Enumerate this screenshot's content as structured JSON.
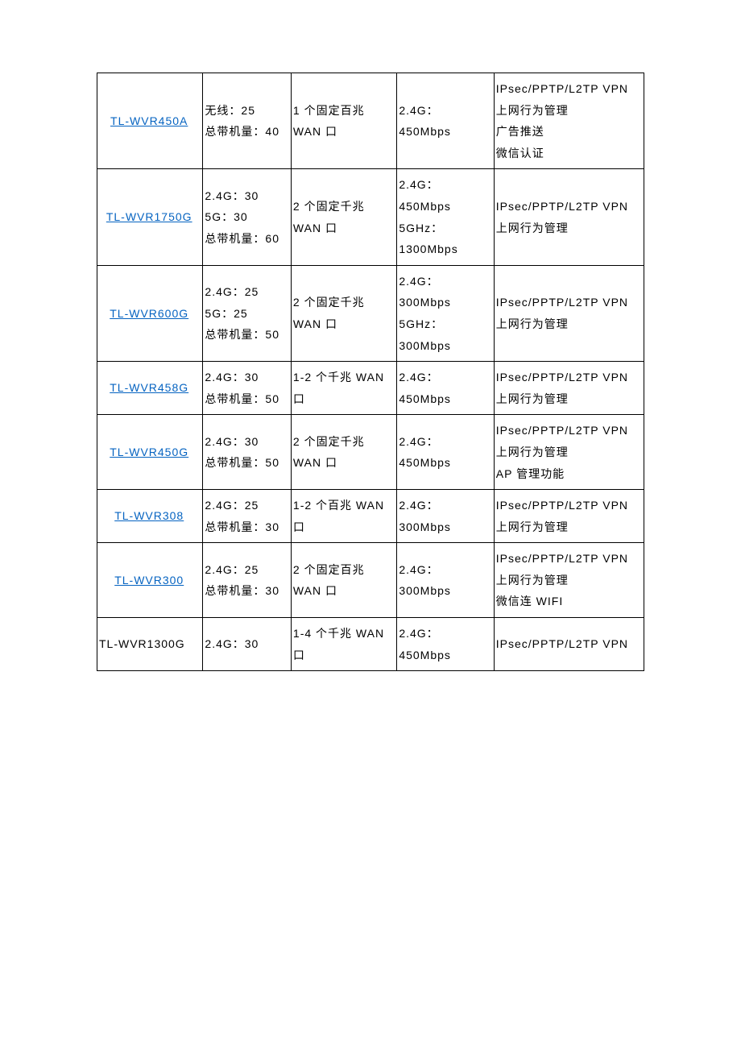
{
  "table": {
    "border_color": "#000000",
    "link_color": "#0563c1",
    "background_color": "#ffffff",
    "font_size_pt": 10.5,
    "rows": [
      {
        "model": "TL-WVR450A",
        "model_is_link": true,
        "capacity": [
          "无线：25",
          "总带机量：40"
        ],
        "wan": [
          "1 个固定百兆 WAN 口"
        ],
        "speed": [
          "2.4G：450Mbps"
        ],
        "features": [
          "IPsec/PPTP/L2TP VPN",
          "上网行为管理",
          "广告推送",
          "微信认证"
        ]
      },
      {
        "model": "TL-WVR1750G",
        "model_is_link": true,
        "capacity": [
          "2.4G：30",
          "5G：30",
          "总带机量：60"
        ],
        "wan": [
          "2 个固定千兆 WAN 口"
        ],
        "speed": [
          "2.4G：450Mbps",
          "5GHz：1300Mbps"
        ],
        "features": [
          "IPsec/PPTP/L2TP VPN",
          "上网行为管理"
        ]
      },
      {
        "model": "TL-WVR600G",
        "model_is_link": true,
        "capacity": [
          "2.4G：25",
          "5G：25",
          "总带机量：50"
        ],
        "wan": [
          "2 个固定千兆 WAN 口"
        ],
        "speed": [
          "2.4G：300Mbps",
          "5GHz：300Mbps"
        ],
        "features": [
          "IPsec/PPTP/L2TP VPN",
          "上网行为管理"
        ]
      },
      {
        "model": "TL-WVR458G",
        "model_is_link": true,
        "capacity": [
          "2.4G：30",
          "总带机量：50"
        ],
        "wan": [
          "1-2 个千兆 WAN 口"
        ],
        "speed": [
          "2.4G：450Mbps"
        ],
        "features": [
          "IPsec/PPTP/L2TP VPN",
          "上网行为管理"
        ]
      },
      {
        "model": "TL-WVR450G",
        "model_is_link": true,
        "capacity": [
          "2.4G：30",
          "总带机量：50"
        ],
        "wan": [
          "2 个固定千兆 WAN 口"
        ],
        "speed": [
          "2.4G：450Mbps"
        ],
        "features": [
          "IPsec/PPTP/L2TP VPN",
          "上网行为管理",
          "AP 管理功能"
        ]
      },
      {
        "model": "TL-WVR308",
        "model_is_link": true,
        "capacity": [
          "2.4G：25",
          "总带机量：30"
        ],
        "wan": [
          "1-2 个百兆 WAN 口"
        ],
        "speed": [
          "2.4G：300Mbps"
        ],
        "features": [
          "IPsec/PPTP/L2TP VPN",
          "上网行为管理"
        ]
      },
      {
        "model": "TL-WVR300",
        "model_is_link": true,
        "capacity": [
          "2.4G：25",
          "总带机量：30"
        ],
        "wan": [
          "2 个固定百兆 WAN 口"
        ],
        "speed": [
          "2.4G：300Mbps"
        ],
        "features": [
          "IPsec/PPTP/L2TP VPN",
          "上网行为管理",
          "微信连 WIFI"
        ]
      },
      {
        "model": "TL-WVR1300G",
        "model_is_link": false,
        "capacity": [
          "2.4G：30"
        ],
        "wan": [
          "1-4 个千兆 WAN 口"
        ],
        "speed": [
          "2.4G：450Mbps"
        ],
        "features": [
          "IPsec/PPTP/L2TP VPN"
        ]
      }
    ]
  }
}
